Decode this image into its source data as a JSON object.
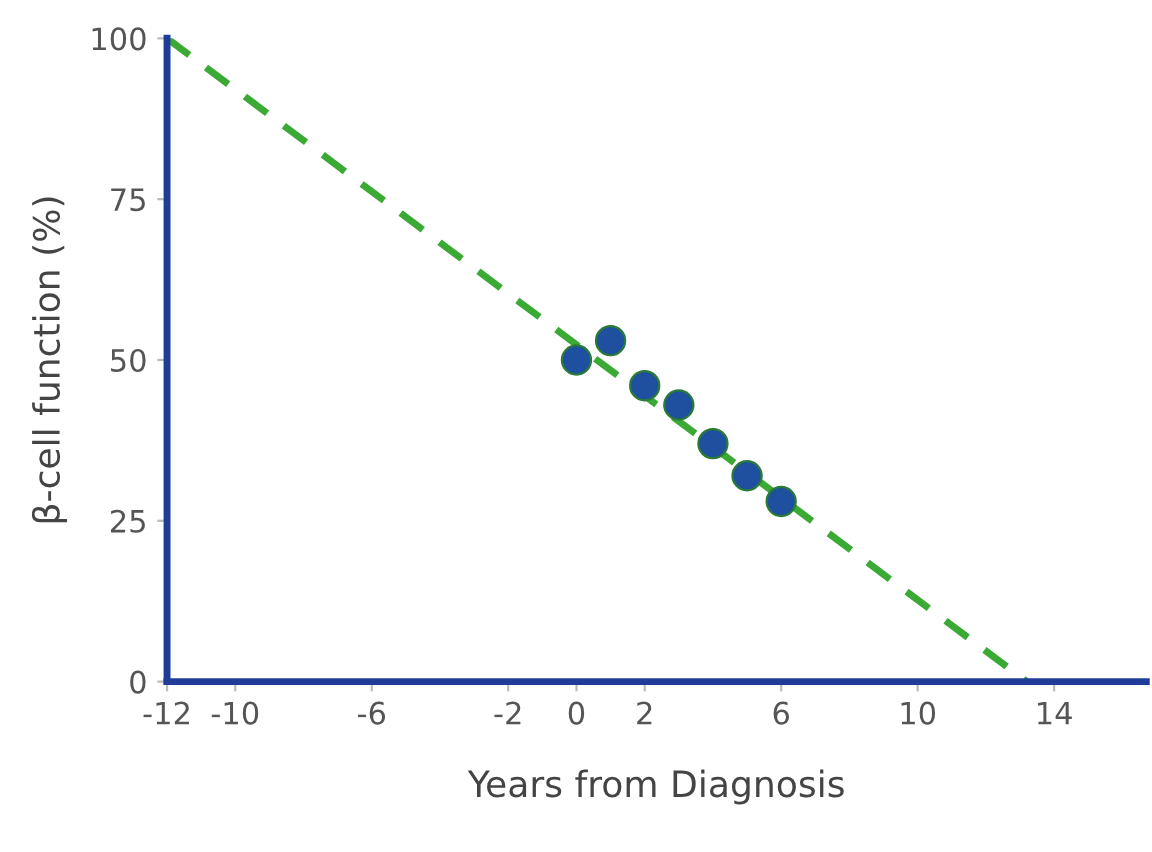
{
  "chart_data": {
    "type": "scatter",
    "xlabel": "Years from Diagnosis",
    "ylabel": "β-cell function (%)",
    "xlim": [
      -12,
      16.7
    ],
    "ylim": [
      0,
      100
    ],
    "xticks": [
      -12,
      -10,
      -6,
      -2,
      0,
      2,
      6,
      10,
      14
    ],
    "yticks": [
      0,
      25,
      50,
      75,
      100
    ],
    "grid": false,
    "legend": false,
    "series": [
      {
        "type": "line",
        "color": "#3aaa35",
        "line_style": "dashed",
        "marker": "none",
        "x": [
          -12,
          13.2
        ],
        "values": [
          100,
          0
        ]
      },
      {
        "color": "#1f4f9f",
        "marker": "circle",
        "x": [
          0,
          1,
          2,
          3,
          4,
          5,
          6
        ],
        "values": [
          50,
          53,
          46,
          43,
          37,
          32,
          28
        ]
      }
    ]
  }
}
